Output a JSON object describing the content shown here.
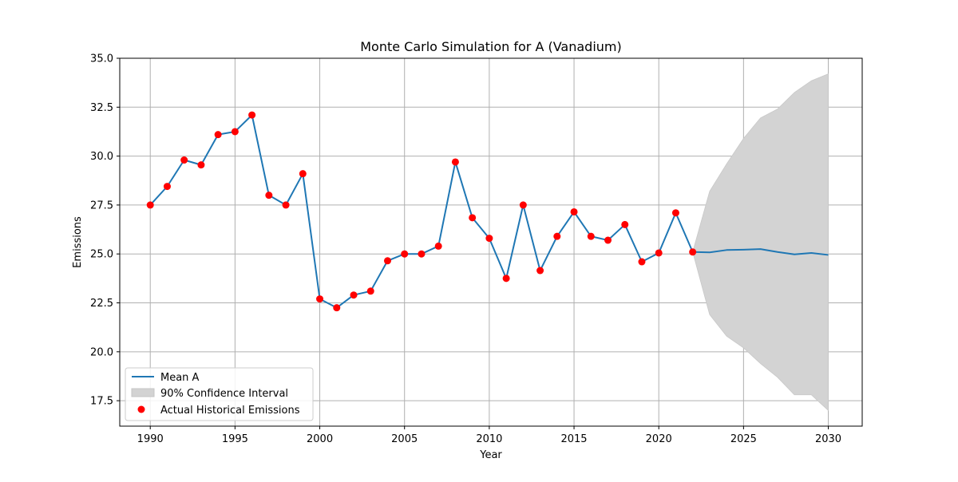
{
  "chart_data": {
    "type": "line",
    "title": "Monte Carlo Simulation for A (Vanadium)",
    "xlabel": "Year",
    "ylabel": "Emissions",
    "xlim": [
      1988.2,
      2032
    ],
    "ylim": [
      16.2,
      35.0
    ],
    "xticks": [
      1990,
      1995,
      2000,
      2005,
      2010,
      2015,
      2020,
      2025,
      2030
    ],
    "yticks": [
      17.5,
      20.0,
      22.5,
      25.0,
      27.5,
      30.0,
      32.5,
      35.0
    ],
    "ytick_labels": [
      "17.5",
      "20.0",
      "22.5",
      "25.0",
      "27.5",
      "30.0",
      "32.5",
      "35.0"
    ],
    "grid": true,
    "legend_position": "lower-left",
    "legend": {
      "mean_label": "Mean A",
      "ci_label": "90% Confidence Interval",
      "actual_label": "Actual Historical Emissions"
    },
    "colors": {
      "mean_line": "#1f77b4",
      "ci_fill": "#d3d3d3",
      "actual_points": "#ff0000",
      "grid": "#b0b0b0"
    },
    "mean_series": {
      "name": "Mean A",
      "x": [
        1990,
        1991,
        1992,
        1993,
        1994,
        1995,
        1996,
        1997,
        1998,
        1999,
        2000,
        2001,
        2002,
        2003,
        2004,
        2005,
        2006,
        2007,
        2008,
        2009,
        2010,
        2011,
        2012,
        2013,
        2014,
        2015,
        2016,
        2017,
        2018,
        2019,
        2020,
        2021,
        2022,
        2023,
        2024,
        2025,
        2026,
        2027,
        2028,
        2029,
        2030
      ],
      "y": [
        27.5,
        28.45,
        29.8,
        29.55,
        31.1,
        31.25,
        32.1,
        28.0,
        27.5,
        29.1,
        22.7,
        22.25,
        22.9,
        23.1,
        24.65,
        25.0,
        25.0,
        25.4,
        29.7,
        26.85,
        25.8,
        23.75,
        27.5,
        24.15,
        25.9,
        27.15,
        25.9,
        25.7,
        26.5,
        24.6,
        25.05,
        27.1,
        25.1,
        25.08,
        25.2,
        25.22,
        25.25,
        25.1,
        24.98,
        25.05,
        24.95
      ]
    },
    "confidence_interval": {
      "name": "90% Confidence Interval",
      "x": [
        2022,
        2023,
        2024,
        2025,
        2026,
        2027,
        2028,
        2029,
        2030
      ],
      "lower": [
        25.1,
        21.9,
        20.8,
        20.2,
        19.4,
        18.7,
        17.8,
        17.8,
        17.0
      ],
      "upper": [
        25.1,
        28.2,
        29.6,
        30.9,
        31.95,
        32.4,
        33.25,
        33.85,
        34.2
      ]
    },
    "actual_series": {
      "name": "Actual Historical Emissions",
      "x": [
        1990,
        1991,
        1992,
        1993,
        1994,
        1995,
        1996,
        1997,
        1998,
        1999,
        2000,
        2001,
        2002,
        2003,
        2004,
        2005,
        2006,
        2007,
        2008,
        2009,
        2010,
        2011,
        2012,
        2013,
        2014,
        2015,
        2016,
        2017,
        2018,
        2019,
        2020,
        2021,
        2022
      ],
      "y": [
        27.5,
        28.45,
        29.8,
        29.55,
        31.1,
        31.25,
        32.1,
        28.0,
        27.5,
        29.1,
        22.7,
        22.25,
        22.9,
        23.1,
        24.65,
        25.0,
        25.0,
        25.4,
        29.7,
        26.85,
        25.8,
        23.75,
        27.5,
        24.15,
        25.9,
        27.15,
        25.9,
        25.7,
        26.5,
        24.6,
        25.05,
        27.1,
        25.1
      ]
    }
  }
}
